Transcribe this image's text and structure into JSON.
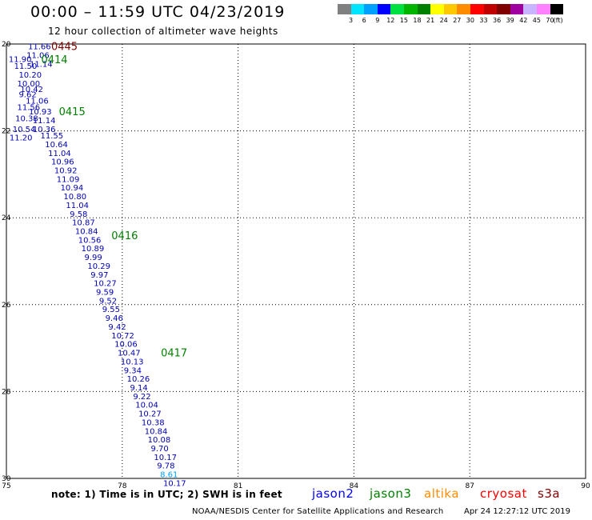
{
  "header": {
    "title": "00:00 – 11:59 UTC 04/23/2019",
    "subtitle": "12 hour collection of altimeter wave heights"
  },
  "legend": {
    "colors": [
      "#808080",
      "#00e5ff",
      "#00a0ff",
      "#0000ff",
      "#00e040",
      "#00b400",
      "#008000",
      "#ffff00",
      "#ffc800",
      "#ff8c00",
      "#ff0000",
      "#c00000",
      "#800000",
      "#a000a0",
      "#c8b4ff",
      "#ff80ff",
      "#000000"
    ],
    "ticks": [
      "3",
      "6",
      "9",
      "12",
      "15",
      "18",
      "21",
      "24",
      "27",
      "30",
      "33",
      "36",
      "39",
      "42",
      "45",
      "70"
    ],
    "unit": "(ft)"
  },
  "chart_data": {
    "type": "scatter",
    "xlim": [
      75,
      90
    ],
    "ylim": [
      30,
      20
    ],
    "x_ticks": [
      "75",
      "78",
      "81",
      "84",
      "87",
      "90"
    ],
    "y_ticks": [
      "20",
      "22",
      "24",
      "26",
      "28",
      "30"
    ],
    "grid": true,
    "points": [
      {
        "lon": 75.56,
        "lat": 20.05,
        "v": "11.66"
      },
      {
        "lon": 75.06,
        "lat": 20.34,
        "v": "11.90"
      },
      {
        "lon": 75.52,
        "lat": 20.25,
        "v": "11.06"
      },
      {
        "lon": 75.2,
        "lat": 20.5,
        "v": "11.50"
      },
      {
        "lon": 75.6,
        "lat": 20.45,
        "v": "11.14"
      },
      {
        "lon": 75.32,
        "lat": 20.7,
        "v": "10.20"
      },
      {
        "lon": 75.28,
        "lat": 20.9,
        "v": "10.00"
      },
      {
        "lon": 75.36,
        "lat": 21.03,
        "v": "10.42"
      },
      {
        "lon": 75.32,
        "lat": 21.15,
        "v": "9.62"
      },
      {
        "lon": 75.5,
        "lat": 21.3,
        "v": "11.06"
      },
      {
        "lon": 75.28,
        "lat": 21.45,
        "v": "11.56"
      },
      {
        "lon": 75.58,
        "lat": 21.55,
        "v": "10.93"
      },
      {
        "lon": 75.23,
        "lat": 21.7,
        "v": "10.38"
      },
      {
        "lon": 75.68,
        "lat": 21.75,
        "v": "11.14"
      },
      {
        "lon": 75.16,
        "lat": 21.95,
        "v": "10.54"
      },
      {
        "lon": 75.68,
        "lat": 21.95,
        "v": "10.36"
      },
      {
        "lon": 75.08,
        "lat": 22.15,
        "v": "11.20"
      },
      {
        "lon": 75.88,
        "lat": 22.1,
        "v": "11.55"
      },
      {
        "lon": 76.0,
        "lat": 22.3,
        "v": "10.64"
      },
      {
        "lon": 76.08,
        "lat": 22.5,
        "v": "11.04"
      },
      {
        "lon": 76.16,
        "lat": 22.7,
        "v": "10.96"
      },
      {
        "lon": 76.24,
        "lat": 22.9,
        "v": "10.92"
      },
      {
        "lon": 76.3,
        "lat": 23.1,
        "v": "11.09"
      },
      {
        "lon": 76.4,
        "lat": 23.3,
        "v": "10.94"
      },
      {
        "lon": 76.48,
        "lat": 23.5,
        "v": "10.80"
      },
      {
        "lon": 76.54,
        "lat": 23.7,
        "v": "11.04"
      },
      {
        "lon": 76.64,
        "lat": 23.9,
        "v": "9.58"
      },
      {
        "lon": 76.7,
        "lat": 24.1,
        "v": "10.87"
      },
      {
        "lon": 76.78,
        "lat": 24.3,
        "v": "10.84"
      },
      {
        "lon": 76.86,
        "lat": 24.5,
        "v": "10.56"
      },
      {
        "lon": 76.94,
        "lat": 24.7,
        "v": "10.89"
      },
      {
        "lon": 77.02,
        "lat": 24.9,
        "v": "9.99"
      },
      {
        "lon": 77.1,
        "lat": 25.1,
        "v": "10.29"
      },
      {
        "lon": 77.18,
        "lat": 25.3,
        "v": "9.97"
      },
      {
        "lon": 77.26,
        "lat": 25.5,
        "v": "10.27"
      },
      {
        "lon": 77.32,
        "lat": 25.7,
        "v": "9.59"
      },
      {
        "lon": 77.4,
        "lat": 25.9,
        "v": "9.52"
      },
      {
        "lon": 77.48,
        "lat": 26.1,
        "v": "9.55"
      },
      {
        "lon": 77.56,
        "lat": 26.3,
        "v": "9.46"
      },
      {
        "lon": 77.64,
        "lat": 26.5,
        "v": "9.42"
      },
      {
        "lon": 77.72,
        "lat": 26.7,
        "v": "10.72"
      },
      {
        "lon": 77.8,
        "lat": 26.9,
        "v": "10.06"
      },
      {
        "lon": 77.88,
        "lat": 27.1,
        "v": "10.47"
      },
      {
        "lon": 77.96,
        "lat": 27.3,
        "v": "10.13"
      },
      {
        "lon": 78.04,
        "lat": 27.5,
        "v": "9.34"
      },
      {
        "lon": 78.12,
        "lat": 27.7,
        "v": "10.26"
      },
      {
        "lon": 78.2,
        "lat": 27.9,
        "v": "9.14"
      },
      {
        "lon": 78.28,
        "lat": 28.1,
        "v": "9.22"
      },
      {
        "lon": 78.34,
        "lat": 28.3,
        "v": "10.04"
      },
      {
        "lon": 78.42,
        "lat": 28.5,
        "v": "10.27"
      },
      {
        "lon": 78.5,
        "lat": 28.7,
        "v": "10.38"
      },
      {
        "lon": 78.58,
        "lat": 28.9,
        "v": "10.84"
      },
      {
        "lon": 78.66,
        "lat": 29.1,
        "v": "10.08"
      },
      {
        "lon": 78.74,
        "lat": 29.3,
        "v": "9.70"
      },
      {
        "lon": 78.82,
        "lat": 29.5,
        "v": "10.17"
      },
      {
        "lon": 78.9,
        "lat": 29.7,
        "v": "9.78"
      },
      {
        "lon": 78.98,
        "lat": 29.9,
        "v": "8.61",
        "color": "#00a0ff"
      },
      {
        "lon": 79.06,
        "lat": 30.1,
        "v": "10.17"
      }
    ],
    "time_labels": [
      {
        "lon": 76.16,
        "lat": 20.05,
        "text": "0445",
        "color": "#800000"
      },
      {
        "lon": 75.9,
        "lat": 20.35,
        "text": "0414",
        "color": "#008000"
      },
      {
        "lon": 76.36,
        "lat": 21.55,
        "text": "0415",
        "color": "#008000"
      },
      {
        "lon": 77.72,
        "lat": 24.4,
        "text": "0416",
        "color": "#008000"
      },
      {
        "lon": 79.0,
        "lat": 27.1,
        "text": "0417",
        "color": "#008000"
      }
    ]
  },
  "footer": {
    "note": "note: 1) Time is in UTC; 2) SWH is in feet",
    "satellites": [
      {
        "name": "jason2",
        "color": "#0000ff"
      },
      {
        "name": "jason3",
        "color": "#008000"
      },
      {
        "name": "altika",
        "color": "#ff8c00"
      },
      {
        "name": "cryosat",
        "color": "#ff0000"
      },
      {
        "name": "s3a",
        "color": "#800000"
      }
    ],
    "credit": "NOAA/NESDIS Center for Satellite Applications and Research",
    "timestamp": "Apr 24 12:27:12 UTC 2019"
  }
}
